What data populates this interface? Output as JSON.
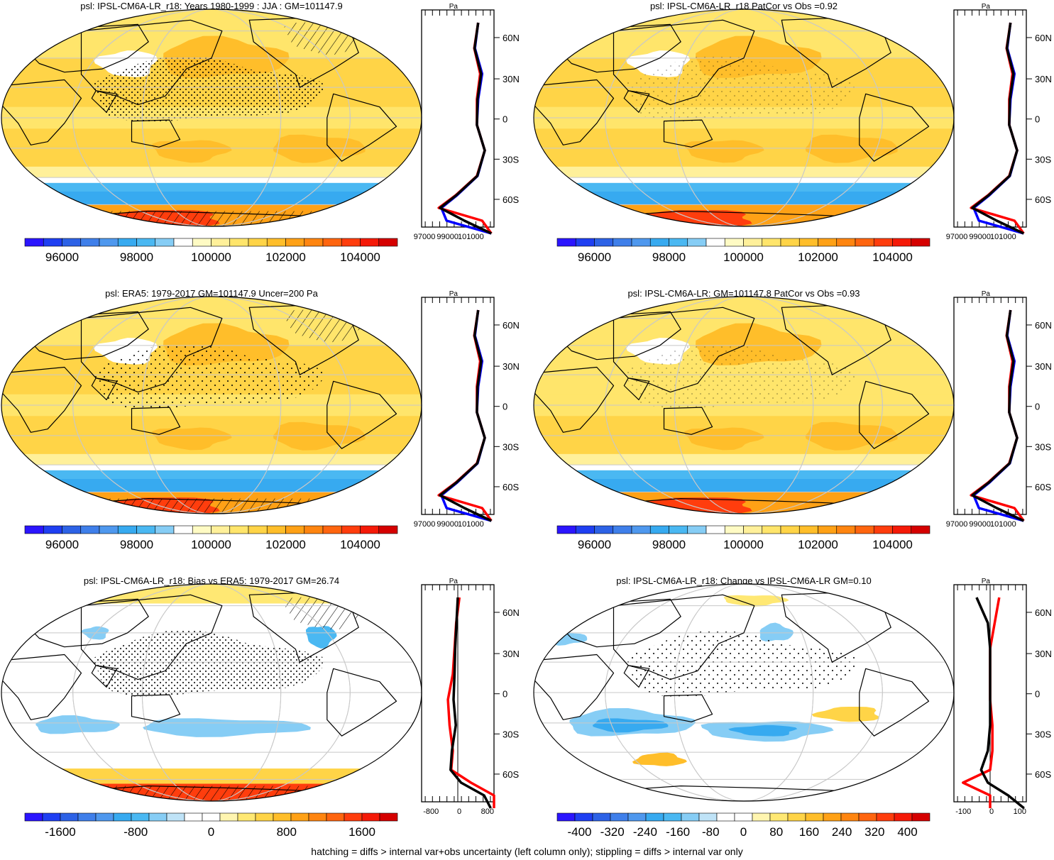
{
  "footer": "hatching = diffs > internal var+obs uncertainty (left column only); stippling = diffs > internal var only",
  "lat_ticks": [
    "60N",
    "30N",
    "0",
    "30S",
    "60S"
  ],
  "profile_unit": "Pa",
  "colors": {
    "psl_scale": [
      "#2b15ff",
      "#1f3ff2",
      "#2d62e6",
      "#3f7fea",
      "#4f98ee",
      "#37aaf0",
      "#4ab8f2",
      "#86cdf5",
      "#ffffff",
      "#fffbc4",
      "#fff09a",
      "#ffe56b",
      "#ffd447",
      "#ffbe2a",
      "#ffa116",
      "#ff8510",
      "#ff650f",
      "#ff3d0d",
      "#f51a08",
      "#d50000"
    ],
    "diff_scale": [
      "#2b15ff",
      "#1f3ff2",
      "#2d62e6",
      "#3f7fea",
      "#4f98ee",
      "#37aaf0",
      "#4ab8f2",
      "#86cdf5",
      "#bfe3f7",
      "#ffffff",
      "#ffffff",
      "#fff5b0",
      "#ffe873",
      "#ffd447",
      "#ffbe2a",
      "#ffa116",
      "#ff8510",
      "#ff650f",
      "#ff3d0d",
      "#f51a08",
      "#d50000"
    ],
    "profile_model": "#ff0000",
    "profile_obs": "#0000ff",
    "profile_mean": "#000000"
  },
  "panels": [
    {
      "title": "psl: IPSL-CM6A-LR_r18: Years 1980-1999 : JJA : GM=101147.9",
      "field": "abs",
      "variant": "model",
      "hatch": true,
      "stipple": true,
      "colorbar_labels": [
        "96000",
        "98000",
        "100000",
        "102000",
        "104000"
      ],
      "profile_ticks": [
        "97000",
        "99000",
        "101000"
      ],
      "profile_zero": false
    },
    {
      "title": "psl: IPSL-CM6A-LR_r18 PatCor vs Obs =0.92",
      "field": "abs",
      "variant": "model",
      "hatch": false,
      "stipple": true,
      "colorbar_labels": [
        "96000",
        "98000",
        "100000",
        "102000",
        "104000"
      ],
      "profile_ticks": [
        "97000",
        "99000",
        "101000"
      ],
      "profile_zero": false
    },
    {
      "title": "psl: ERA5: 1979-2017 GM=101147.9 Uncer=200 Pa",
      "field": "abs",
      "variant": "obs",
      "hatch": true,
      "stipple": true,
      "colorbar_labels": [
        "96000",
        "98000",
        "100000",
        "102000",
        "104000"
      ],
      "profile_ticks": [
        "97000",
        "99000",
        "101000"
      ],
      "profile_zero": false
    },
    {
      "title": "psl: IPSL-CM6A-LR: GM=101147.8 PatCor vs Obs =0.93",
      "field": "abs",
      "variant": "mme",
      "hatch": false,
      "stipple": true,
      "colorbar_labels": [
        "96000",
        "98000",
        "100000",
        "102000",
        "104000"
      ],
      "profile_ticks": [
        "97000",
        "99000",
        "101000"
      ],
      "profile_zero": false
    },
    {
      "title": "psl: IPSL-CM6A-LR_r18: Bias vs ERA5: 1979-2017 GM=26.74",
      "field": "bias",
      "variant": "bias",
      "hatch": true,
      "stipple": true,
      "colorbar_labels": [
        "-1600",
        "-800",
        "0",
        "800",
        "1600"
      ],
      "profile_ticks": [
        "-800",
        "0",
        "800"
      ],
      "profile_zero": true
    },
    {
      "title": "psl: IPSL-CM6A-LR_r18: Change vs IPSL-CM6A-LR GM=0.10",
      "field": "change",
      "variant": "change",
      "hatch": false,
      "stipple": true,
      "colorbar_labels": [
        "-400",
        "-320",
        "-240",
        "-160",
        "-80",
        "0",
        "80",
        "160",
        "240",
        "320",
        "400"
      ],
      "profile_ticks": [
        "-100",
        "0",
        "100"
      ],
      "profile_zero": true
    }
  ],
  "chart_data": {
    "type": "heatmap",
    "variable": "psl",
    "unit": "Pa",
    "panels": [
      {
        "title": "psl: IPSL-CM6A-LR_r18: Years 1980-1999 : JJA : GM=101147.9",
        "colorbar_ticks": [
          96000,
          98000,
          100000,
          102000,
          104000
        ],
        "zonal_mean_range": [
          97000,
          102500
        ],
        "zonal_mean_lat": [
          80,
          60,
          40,
          20,
          0,
          -20,
          -40,
          -55,
          -65,
          -75,
          -85
        ],
        "zonal_mean_model": [
          101300,
          101000,
          101450,
          101200,
          101200,
          101800,
          101200,
          99600,
          98300,
          101600,
          102300
        ],
        "zonal_mean_obs": [
          101300,
          101050,
          101600,
          101300,
          101200,
          101800,
          101250,
          99700,
          98500,
          98900,
          102300
        ]
      },
      {
        "title": "psl: IPSL-CM6A-LR_r18 PatCor vs Obs =0.92",
        "colorbar_ticks": [
          96000,
          98000,
          100000,
          102000,
          104000
        ],
        "zonal_mean_range": [
          97000,
          102500
        ]
      },
      {
        "title": "psl: ERA5: 1979-2017 GM=101147.9 Uncer=200 Pa",
        "colorbar_ticks": [
          96000,
          98000,
          100000,
          102000,
          104000
        ],
        "zonal_mean_range": [
          97000,
          102500
        ]
      },
      {
        "title": "psl: IPSL-CM6A-LR: GM=101147.8 PatCor vs Obs =0.93",
        "colorbar_ticks": [
          96000,
          98000,
          100000,
          102000,
          104000
        ],
        "zonal_mean_range": [
          97000,
          102500
        ]
      },
      {
        "title": "psl: IPSL-CM6A-LR_r18: Bias vs ERA5: 1979-2017 GM=26.74",
        "colorbar_ticks": [
          -1600,
          -800,
          0,
          800,
          1600
        ],
        "zonal_mean_range": [
          -1000,
          1200
        ],
        "zonal_mean_lat": [
          80,
          60,
          40,
          20,
          0,
          -20,
          -40,
          -55,
          -65,
          -75,
          -85
        ],
        "zonal_mean_model": [
          150,
          50,
          0,
          -50,
          -200,
          -150,
          -50,
          -100,
          500,
          1200,
          1200
        ],
        "zonal_mean_mean": [
          100,
          60,
          20,
          0,
          -30,
          40,
          -80,
          -120,
          200,
          900,
          1100
        ]
      },
      {
        "title": "psl: IPSL-CM6A-LR_r18: Change vs IPSL-CM6A-LR GM=0.10",
        "colorbar_ticks": [
          -400,
          -320,
          -240,
          -160,
          -80,
          0,
          80,
          160,
          240,
          320,
          400
        ],
        "zonal_mean_range": [
          -160,
          160
        ],
        "zonal_mean_lat": [
          80,
          60,
          40,
          20,
          0,
          -20,
          -40,
          -55,
          -65,
          -75,
          -85
        ],
        "zonal_mean_model": [
          40,
          20,
          0,
          0,
          0,
          10,
          10,
          0,
          -120,
          0,
          0
        ],
        "zonal_mean_mean": [
          -60,
          -10,
          0,
          0,
          0,
          0,
          -10,
          -40,
          -10,
          80,
          150
        ]
      }
    ]
  }
}
